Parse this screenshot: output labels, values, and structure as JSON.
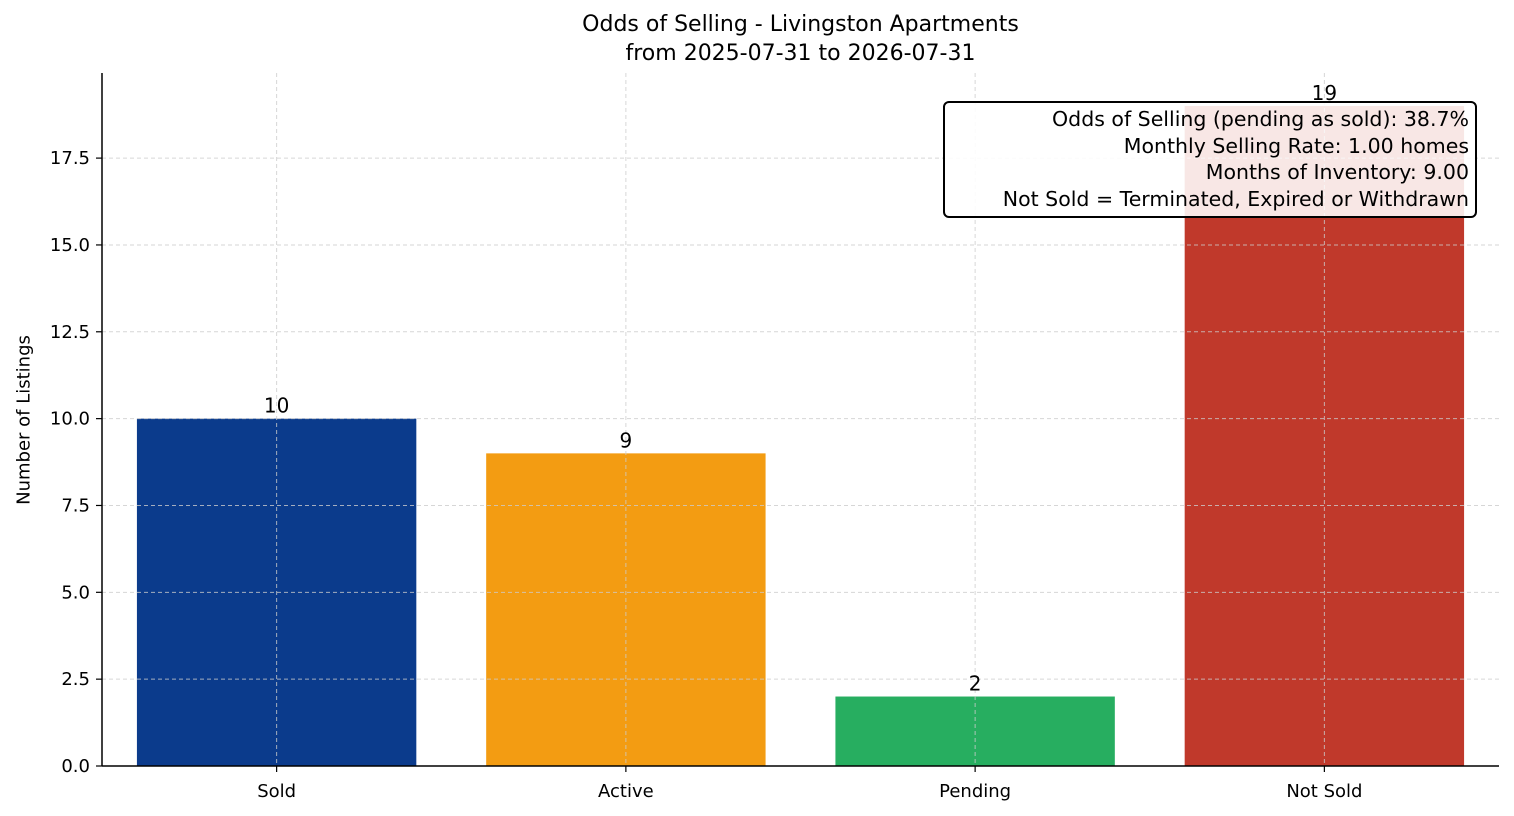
{
  "chart_data": {
    "type": "bar",
    "title": "Odds of Selling - Livingston Apartments",
    "subtitle": "from 2025-07-31 to 2026-07-31",
    "xlabel": "",
    "ylabel": "Number of Listings",
    "categories": [
      "Sold",
      "Active",
      "Pending",
      "Not Sold"
    ],
    "values": [
      10,
      9,
      2,
      19
    ],
    "data_labels": [
      "10",
      "9",
      "2",
      "19"
    ],
    "colors": [
      "#0b3b8c",
      "#f39c12",
      "#27ae60",
      "#c0392b"
    ],
    "ylim": [
      0,
      19.95
    ],
    "yticks": [
      0.0,
      2.5,
      5.0,
      7.5,
      10.0,
      12.5,
      15.0,
      17.5
    ],
    "ytick_labels": [
      "0.0",
      "2.5",
      "5.0",
      "7.5",
      "10.0",
      "12.5",
      "15.0",
      "17.5"
    ],
    "grid": true,
    "annotation_lines": [
      "Odds of Selling (pending as sold): 38.7%",
      "Monthly Selling Rate: 1.00 homes",
      "Months of Inventory: 9.00",
      "Not Sold = Terminated, Expired or Withdrawn"
    ]
  }
}
